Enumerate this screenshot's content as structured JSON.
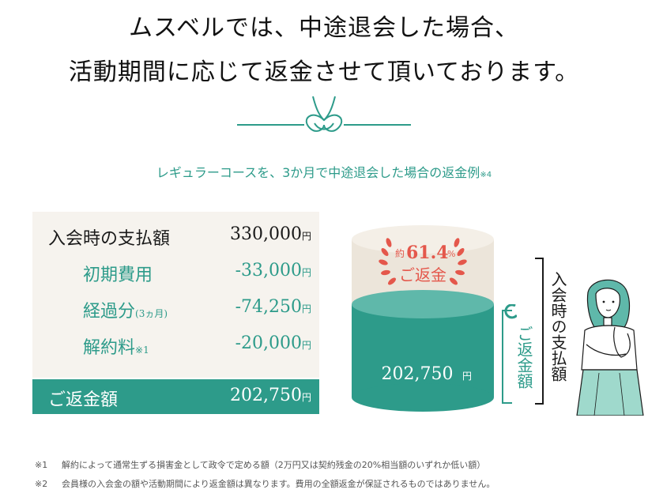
{
  "headline": {
    "line1": "ムスベルでは、中途退会した場合、",
    "line2": "活動期間に応じて返金させて頂いております。"
  },
  "subtitle": {
    "text": "レギュラーコースを、3か月で中途退会した場合の返金例",
    "note": "※4"
  },
  "table": {
    "rows": [
      {
        "label": "入会時の支払額",
        "label_suffix": "",
        "value": "330,000",
        "unit": "円"
      },
      {
        "label": "初期費用",
        "label_suffix": "",
        "value": "-33,000",
        "unit": "円"
      },
      {
        "label": "経過分",
        "label_suffix": "(3ヵ月)",
        "value": "-74,250",
        "unit": "円"
      },
      {
        "label": "解約料",
        "label_suffix": "※1",
        "value": "-20,000",
        "unit": "円"
      }
    ],
    "total": {
      "label": "ご返金額",
      "value": "202,750",
      "unit": "円"
    }
  },
  "cylinder": {
    "badge_prefix": "約",
    "badge_percent": "61.4",
    "badge_percent_sign": "%",
    "badge_label": "ご返金",
    "value": "202,750",
    "unit": "円",
    "refund_ratio": 0.614
  },
  "side_labels": {
    "refund": "ご返金額",
    "paid": "入会時の支払額"
  },
  "footnotes": [
    {
      "mark": "※1",
      "text": "解約によって通常生ずる損害金として政令で定める額（2万円又は契約残金の20%相当額のいずれか低い額）"
    },
    {
      "mark": "※2",
      "text": "会員様の入会金の額や活動期間により返金額は異なります。費用の全額返金が保証されるものではありません。"
    }
  ],
  "colors": {
    "teal": "#2d9b8a",
    "teal_light": "#5fb8aa",
    "beige": "#ece5da",
    "coral": "#e4574b"
  }
}
